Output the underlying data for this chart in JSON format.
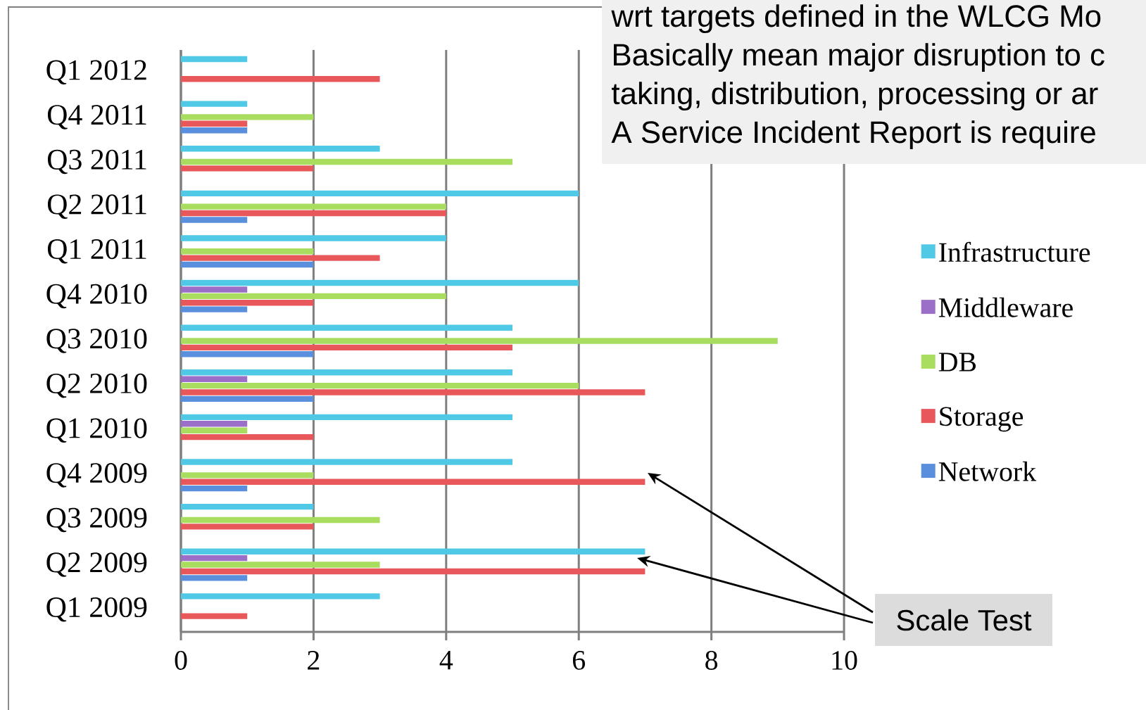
{
  "chart_data": {
    "type": "bar",
    "orientation": "horizontal",
    "categories": [
      "Q1 2012",
      "Q4 2011",
      "Q3 2011",
      "Q2 2011",
      "Q1 2011",
      "Q4 2010",
      "Q3 2010",
      "Q2 2010",
      "Q1 2010",
      "Q4 2009",
      "Q3 2009",
      "Q2 2009",
      "Q1 2009"
    ],
    "series": [
      {
        "name": "Infrastructure",
        "color": "#4fc9e6",
        "values": [
          1,
          1,
          3,
          6,
          4,
          6,
          5,
          5,
          5,
          5,
          2,
          7,
          3
        ]
      },
      {
        "name": "Middleware",
        "color": "#9b6fc8",
        "values": [
          0,
          0,
          0,
          0,
          0,
          1,
          0,
          1,
          1,
          0,
          0,
          1,
          0
        ]
      },
      {
        "name": "DB",
        "color": "#a9dd5f",
        "values": [
          0,
          2,
          5,
          4,
          2,
          4,
          9,
          6,
          1,
          2,
          3,
          3,
          0
        ]
      },
      {
        "name": "Storage",
        "color": "#e8585a",
        "values": [
          3,
          1,
          2,
          4,
          3,
          2,
          5,
          7,
          2,
          7,
          2,
          7,
          1
        ]
      },
      {
        "name": "Network",
        "color": "#5a8fdd",
        "values": [
          0,
          1,
          0,
          1,
          2,
          1,
          2,
          2,
          0,
          1,
          0,
          1,
          0
        ]
      }
    ],
    "xlim": [
      0,
      10
    ],
    "xticks": [
      0,
      2,
      4,
      6,
      8,
      10
    ],
    "grid": "x",
    "legend": "right",
    "annotations": [
      "wrt targets defined in the WLCG Mo",
      "Basically mean major disruption to c",
      "taking, distribution, processing or ar",
      "A Service Incident Report is require",
      "Scale Test"
    ]
  }
}
